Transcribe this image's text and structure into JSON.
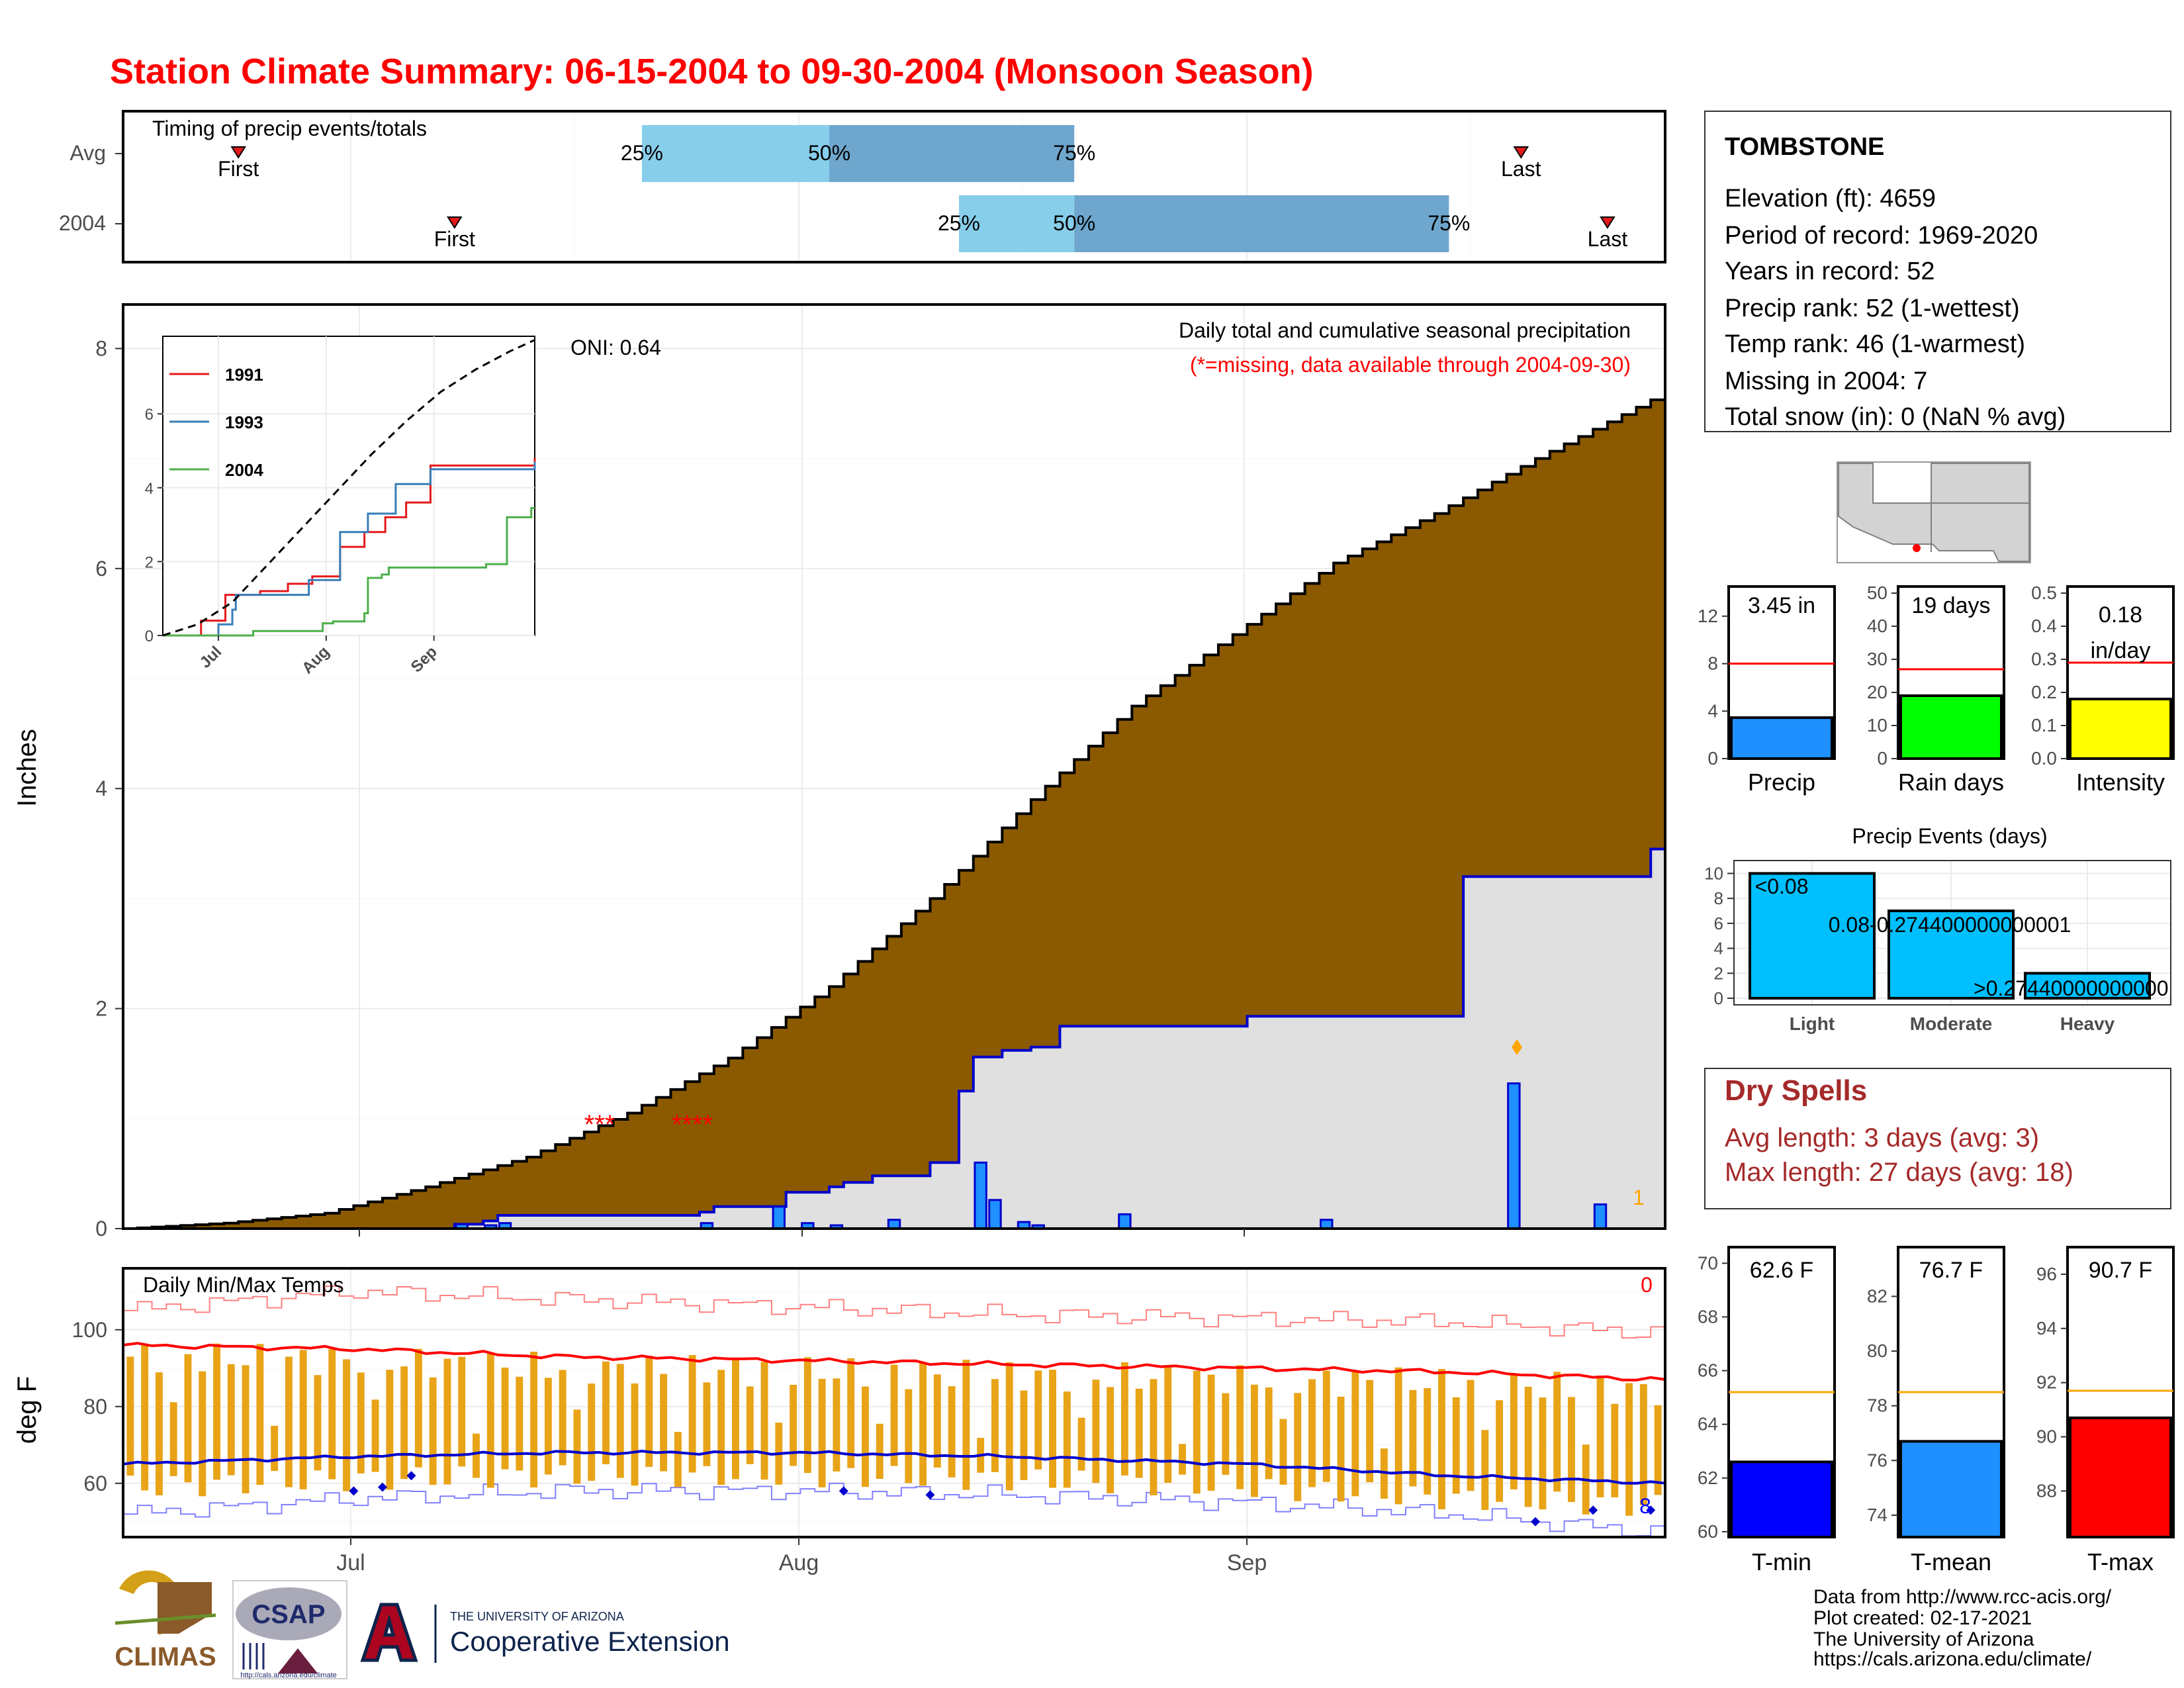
{
  "title": "Station Climate Summary: 06-15-2004 to 09-30-2004 (Monsoon Season)",
  "colors": {
    "title": "#ff0000",
    "cumulative_avg_fill": "#8b5a00",
    "cumulative_obs_fill": "#e0e0e0",
    "cumulative_obs_line": "#0000cd",
    "daily_bar": "#1e90ff",
    "timing_light": "#87ceeb",
    "timing_dark": "#6ea6cd",
    "temp_bar": "#e8a317",
    "tmax_line": "#ff0000",
    "tmin_line": "#0000cd",
    "precip_bar": "#1e90ff",
    "raindays_bar": "#00ff00",
    "intensity_bar": "#ffff00",
    "events_bar": "#00bfff",
    "tmin_bar": "#0000ff",
    "tmean_bar": "#1e90ff",
    "tmax_bar": "#ff0000",
    "normal_line_red": "#ff0000",
    "normal_line_orange": "#ffa500",
    "dry_spells_text": "#a52a2a"
  },
  "timing": {
    "title": "Timing of precip events/totals",
    "rows": [
      "Avg",
      "2004"
    ],
    "avg": {
      "first": "First",
      "last": "Last",
      "p25": "25%",
      "p50": "50%",
      "p75": "75%"
    },
    "obs": {
      "first": "First",
      "last": "Last",
      "p25": "25%",
      "p50": "50%",
      "p75": "75%"
    }
  },
  "precip": {
    "caption1": "Daily total and cumulative seasonal precipitation",
    "caption2": "(*=missing, data available through 2004-09-30)",
    "oni": "ONI: 0.64",
    "ylabel": "Inches",
    "yticks": [
      "0",
      "2",
      "4",
      "6",
      "8"
    ],
    "missing_a": "***",
    "missing_b": "****",
    "corner_count": "1"
  },
  "inset": {
    "yticks": [
      "0",
      "2",
      "4",
      "6"
    ],
    "xticks": [
      "Jul",
      "Aug",
      "Sep"
    ],
    "legend": [
      "1991",
      "1993",
      "2004"
    ]
  },
  "temps": {
    "title": "Daily Min/Max Temps",
    "ylabel": "deg F",
    "yticks": [
      "60",
      "80",
      "100"
    ],
    "count_hot": "0",
    "count_cold": "8"
  },
  "xaxis": {
    "ticks": [
      "Jul",
      "Aug",
      "Sep"
    ]
  },
  "station": {
    "name": "TOMBSTONE",
    "lines": [
      "Elevation (ft): 4659",
      "Period of record: 1969-2020",
      "Years in record: 52",
      "Precip rank: 52 (1-wettest)",
      "Temp rank: 46 (1-warmest)",
      "Missing in 2004: 7",
      "Total snow (in): 0 (NaN % avg)"
    ]
  },
  "mini": {
    "precip": {
      "label": "Precip",
      "value_text": "3.45 in",
      "yticks": [
        "0",
        "4",
        "8",
        "12"
      ]
    },
    "raindays": {
      "label": "Rain days",
      "value_text": "19 days",
      "yticks": [
        "0",
        "10",
        "20",
        "30",
        "40",
        "50"
      ]
    },
    "intensity": {
      "label": "Intensity",
      "value_text_1": "0.18",
      "value_text_2": "in/day",
      "yticks": [
        "0.0",
        "0.1",
        "0.2",
        "0.3",
        "0.4",
        "0.5"
      ]
    },
    "tmin": {
      "label": "T-min",
      "value_text": "62.6 F",
      "yticks": [
        "60",
        "62",
        "64",
        "66",
        "68",
        "70"
      ]
    },
    "tmean": {
      "label": "T-mean",
      "value_text": "76.7 F",
      "yticks": [
        "74",
        "76",
        "78",
        "80",
        "82"
      ]
    },
    "tmax": {
      "label": "T-max",
      "value_text": "90.7 F",
      "yticks": [
        "88",
        "90",
        "92",
        "94",
        "96"
      ]
    }
  },
  "events": {
    "title": "Precip Events (days)",
    "categories": [
      "Light",
      "Moderate",
      "Heavy"
    ],
    "bar_labels": [
      "<0.08",
      "0.08-0.274400000000001",
      ">0.274400000000001"
    ],
    "yticks": [
      "0",
      "2",
      "4",
      "6",
      "8",
      "10"
    ]
  },
  "dry_spells": {
    "title": "Dry Spells",
    "avg": "Avg length: 3 days (avg: 3)",
    "max": "Max length: 27 days (avg: 18)"
  },
  "footer": {
    "lines": [
      "Data from http://www.rcc-acis.org/",
      "Plot created: 02-17-2021",
      "The University of Arizona",
      "https://cals.arizona.edu/climate/"
    ],
    "logo_climas": "CLIMAS",
    "logo_csap": "CSAP",
    "logo_csap_url": "http://cals.arizona.edu/climate",
    "logo_ua_small": "THE UNIVERSITY OF ARIZONA",
    "logo_ua_big": "Cooperative Extension"
  },
  "chart_data": [
    {
      "type": "bar",
      "title": "Timing of precip events/totals",
      "x_unit": "date",
      "series": [
        {
          "name": "Avg",
          "first": "2004-06-23",
          "p25": "2004-07-21",
          "p50": "2004-08-03",
          "p75": "2004-08-20",
          "last": "2004-09-20"
        },
        {
          "name": "2004",
          "first": "2004-07-08",
          "p25": "2004-08-12",
          "p50": "2004-08-20",
          "p75": "2004-09-15",
          "last": "2004-09-26"
        }
      ]
    },
    {
      "type": "area",
      "title": "Daily total and cumulative seasonal precipitation",
      "ylabel": "Inches",
      "ylim": [
        0,
        8.4
      ],
      "x_range": [
        "2004-06-15",
        "2004-09-30"
      ],
      "avg_cumulative": {
        "x": [
          "2004-06-15",
          "2004-06-22",
          "2004-06-29",
          "2004-07-06",
          "2004-07-13",
          "2004-07-20",
          "2004-07-27",
          "2004-08-03",
          "2004-08-10",
          "2004-08-17",
          "2004-08-24",
          "2004-08-31",
          "2004-09-07",
          "2004-09-14",
          "2004-09-21",
          "2004-09-30"
        ],
        "y": [
          0.0,
          0.05,
          0.14,
          0.38,
          0.65,
          1.05,
          1.55,
          2.2,
          3.0,
          3.9,
          4.75,
          5.4,
          6.05,
          6.5,
          7.0,
          7.6
        ]
      },
      "obs_cumulative": {
        "x": [
          "2004-06-15",
          "2004-07-07",
          "2004-07-08",
          "2004-07-10",
          "2004-07-11",
          "2004-07-25",
          "2004-07-26",
          "2004-07-30",
          "2004-07-31",
          "2004-08-03",
          "2004-08-04",
          "2004-08-06",
          "2004-08-10",
          "2004-08-12",
          "2004-08-13",
          "2004-08-15",
          "2004-08-17",
          "2004-08-19",
          "2004-09-01",
          "2004-09-16",
          "2004-09-22",
          "2004-09-29",
          "2004-09-30"
        ],
        "y": [
          0.0,
          0.0,
          0.04,
          0.07,
          0.12,
          0.15,
          0.2,
          0.2,
          0.33,
          0.38,
          0.42,
          0.48,
          0.6,
          1.25,
          1.56,
          1.62,
          1.65,
          1.84,
          1.93,
          3.2,
          3.2,
          3.45,
          3.45
        ]
      },
      "daily": [
        {
          "x": "2004-07-08",
          "y": 0.04
        },
        {
          "x": "2004-07-10",
          "y": 0.03
        },
        {
          "x": "2004-07-11",
          "y": 0.05
        },
        {
          "x": "2004-07-25",
          "y": 0.05
        },
        {
          "x": "2004-07-30",
          "y": 0.2
        },
        {
          "x": "2004-08-01",
          "y": 0.05
        },
        {
          "x": "2004-08-03",
          "y": 0.03
        },
        {
          "x": "2004-08-07",
          "y": 0.08
        },
        {
          "x": "2004-08-13",
          "y": 0.6
        },
        {
          "x": "2004-08-14",
          "y": 0.26
        },
        {
          "x": "2004-08-16",
          "y": 0.06
        },
        {
          "x": "2004-08-17",
          "y": 0.03
        },
        {
          "x": "2004-08-23",
          "y": 0.13
        },
        {
          "x": "2004-09-06",
          "y": 0.08
        },
        {
          "x": "2004-09-19",
          "y": 1.32
        },
        {
          "x": "2004-09-25",
          "y": 0.22
        }
      ]
    },
    {
      "type": "line",
      "title": "",
      "ylim": [
        0,
        8.1
      ],
      "x_range": [
        "2004-06-15",
        "2004-09-30"
      ],
      "series": [
        {
          "name": "1991",
          "x": [
            "2004-06-15",
            "2004-06-25",
            "2004-06-26",
            "2004-07-02",
            "2004-07-03",
            "2004-07-13",
            "2004-07-21",
            "2004-07-28",
            "2004-08-05",
            "2004-08-12",
            "2004-08-18",
            "2004-08-24",
            "2004-08-31",
            "2004-09-30"
          ],
          "y": [
            0,
            0,
            0.4,
            0.4,
            1.1,
            1.2,
            1.4,
            1.6,
            2.4,
            2.8,
            3.2,
            3.6,
            4.6,
            4.8
          ]
        },
        {
          "name": "1993",
          "x": [
            "2004-06-15",
            "2004-06-30",
            "2004-07-01",
            "2004-07-05",
            "2004-07-06",
            "2004-07-20",
            "2004-07-27",
            "2004-08-05",
            "2004-08-13",
            "2004-08-21",
            "2004-08-31",
            "2004-09-30"
          ],
          "y": [
            0,
            0,
            0.3,
            0.7,
            1.1,
            1.1,
            1.5,
            2.8,
            3.3,
            4.1,
            4.5,
            4.7
          ]
        },
        {
          "name": "2004",
          "x": [
            "2004-06-15",
            "2004-07-07",
            "2004-07-11",
            "2004-07-31",
            "2004-08-03",
            "2004-08-12",
            "2004-08-13",
            "2004-08-17",
            "2004-08-19",
            "2004-09-16",
            "2004-09-22",
            "2004-09-29",
            "2004-09-30"
          ],
          "y": [
            0,
            0,
            0.12,
            0.33,
            0.38,
            0.6,
            1.56,
            1.65,
            1.84,
            1.93,
            3.2,
            3.45,
            3.45
          ]
        },
        {
          "name": "",
          "x": [
            "2004-06-15",
            "2004-06-25",
            "2004-07-05",
            "2004-07-15",
            "2004-07-25",
            "2004-08-04",
            "2004-08-14",
            "2004-08-24",
            "2004-09-03",
            "2004-09-13",
            "2004-09-23",
            "2004-09-30"
          ],
          "y": [
            0,
            0.3,
            0.9,
            1.9,
            2.9,
            3.9,
            4.9,
            5.8,
            6.6,
            7.2,
            7.7,
            8.0
          ]
        }
      ]
    },
    {
      "type": "bar",
      "title": "Daily Min/Max Temps",
      "ylabel": "deg F",
      "ylim": [
        46,
        116
      ],
      "x_range": [
        "2004-06-15",
        "2004-09-30"
      ],
      "avg_tmax": {
        "x": [
          "2004-06-15",
          "2004-07-01",
          "2004-07-15",
          "2004-08-01",
          "2004-08-15",
          "2004-09-01",
          "2004-09-15",
          "2004-09-30"
        ],
        "y": [
          96,
          95,
          93,
          92,
          91,
          90,
          89,
          87
        ]
      },
      "avg_tmin": {
        "x": [
          "2004-06-15",
          "2004-07-01",
          "2004-07-15",
          "2004-08-01",
          "2004-08-15",
          "2004-09-01",
          "2004-09-15",
          "2004-09-30"
        ],
        "y": [
          65,
          67,
          68,
          68,
          67,
          65,
          62,
          60
        ]
      },
      "record_high": {
        "x": [
          "2004-06-15",
          "2004-07-01",
          "2004-07-15",
          "2004-08-01",
          "2004-08-15",
          "2004-09-01",
          "2004-09-15",
          "2004-09-30"
        ],
        "y": [
          105,
          110,
          108,
          106,
          104,
          103,
          102,
          99
        ]
      },
      "record_low": {
        "x": [
          "2004-06-15",
          "2004-07-01",
          "2004-07-15",
          "2004-08-01",
          "2004-08-15",
          "2004-09-01",
          "2004-09-15",
          "2004-09-30"
        ],
        "y": [
          52,
          56,
          58,
          58,
          57,
          55,
          52,
          47
        ]
      },
      "daily_range": {
        "tmax_typical": 95,
        "tmin_typical": 62,
        "note": "daily bars span roughly 60-100 F through the season"
      }
    },
    {
      "type": "bar",
      "title": "",
      "categories": [
        "Precip",
        "Rain days",
        "Intensity"
      ],
      "values": [
        3.45,
        19,
        0.18
      ],
      "normals": [
        8.0,
        27,
        0.29
      ],
      "ylims": [
        [
          0,
          14.5
        ],
        [
          0,
          52
        ],
        [
          0,
          0.52
        ]
      ]
    },
    {
      "type": "bar",
      "title": "Precip Events (days)",
      "categories": [
        "Light",
        "Moderate",
        "Heavy"
      ],
      "values": [
        10,
        7,
        2
      ],
      "ylim": [
        0,
        10.5
      ]
    },
    {
      "type": "bar",
      "title": "",
      "categories": [
        "T-min",
        "T-mean",
        "T-max"
      ],
      "values": [
        62.6,
        76.7,
        90.7
      ],
      "normals": [
        65.2,
        78.5,
        91.7
      ],
      "ylims": [
        [
          59.8,
          70.6
        ],
        [
          73.2,
          83.8
        ],
        [
          86.3,
          97.0
        ]
      ]
    }
  ]
}
